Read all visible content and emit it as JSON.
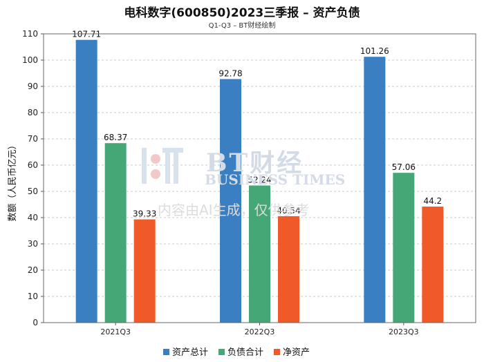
{
  "title": "电科数字(600850)2023三季报 – 资产负债",
  "subtitle": "Q1-Q3 – BT财经绘制",
  "watermark": {
    "line1": "BT财经",
    "line2": "BUSINESS TIMES",
    "line3": "内容由AI生成，仅供参考"
  },
  "chart_data": {
    "type": "bar",
    "categories": [
      "2021Q3",
      "2022Q3",
      "2023Q3"
    ],
    "series": [
      {
        "name": "资产总计",
        "color": "#3a7fc1",
        "values": [
          107.71,
          92.78,
          101.26
        ]
      },
      {
        "name": "负债合计",
        "color": "#45a775",
        "values": [
          68.37,
          52.24,
          57.06
        ]
      },
      {
        "name": "净资产",
        "color": "#f05a28",
        "values": [
          39.33,
          40.54,
          44.2
        ]
      }
    ],
    "data_labels": [
      [
        "107.71",
        "92.78",
        "101.26"
      ],
      [
        "68.37",
        "52.24",
        "57.06"
      ],
      [
        "39.33",
        "40.54",
        "44.2"
      ]
    ],
    "ylabel": "数额（人民币亿元）",
    "xlabel": "",
    "ylim": [
      0,
      110
    ],
    "yticks": [
      0,
      10,
      20,
      30,
      40,
      50,
      60,
      70,
      80,
      90,
      100,
      110
    ],
    "grid": true,
    "legend_position": "bottom"
  }
}
